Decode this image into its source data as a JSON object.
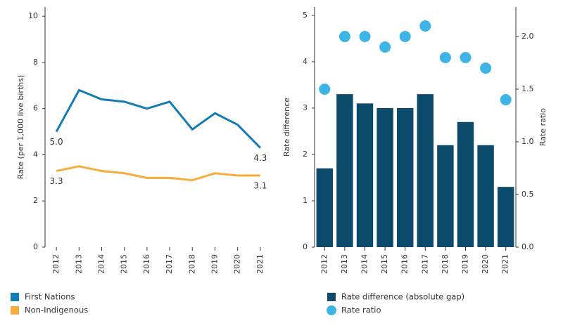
{
  "chart_data": [
    {
      "type": "line",
      "y_label": "Rate (per 1,000 live births)",
      "categories": [
        "2012",
        "2013",
        "2014",
        "2015",
        "2016",
        "2017",
        "2018",
        "2019",
        "2020",
        "2021"
      ],
      "ylim": [
        0,
        10.4
      ],
      "yticks": [
        0,
        2,
        4,
        6,
        8,
        10
      ],
      "series": [
        {
          "name": "First Nations",
          "color": "#137cb5",
          "values": [
            5.0,
            6.8,
            6.4,
            6.3,
            6.0,
            6.3,
            5.1,
            5.8,
            5.3,
            4.3
          ],
          "value_labels": [
            "5.0",
            null,
            null,
            null,
            null,
            null,
            null,
            null,
            null,
            "4.3"
          ]
        },
        {
          "name": "Non-Indigenous",
          "color": "#f7ac3e",
          "values": [
            3.3,
            3.5,
            3.3,
            3.2,
            3.0,
            3.0,
            2.9,
            3.2,
            3.1,
            3.1
          ],
          "value_labels": [
            "3.3",
            null,
            null,
            null,
            null,
            null,
            null,
            null,
            null,
            "3.1"
          ]
        }
      ]
    },
    {
      "type": "bar",
      "y_label": "Rate difference",
      "y2_label": "Rate ratio",
      "categories": [
        "2012",
        "2013",
        "2014",
        "2015",
        "2016",
        "2017",
        "2018",
        "2019",
        "2020",
        "2021"
      ],
      "ylim": [
        0,
        5.18
      ],
      "yticks": [
        0,
        1,
        2,
        3,
        4,
        5
      ],
      "y2lim": [
        0,
        2.28
      ],
      "y2ticks": [
        {
          "value": 0,
          "label": "0.0"
        },
        {
          "value": 0.5,
          "label": "0.5"
        },
        {
          "value": 1,
          "label": "1.0"
        },
        {
          "value": 1.5,
          "label": "1.5"
        },
        {
          "value": 2,
          "label": "2.0"
        }
      ],
      "series": [
        {
          "name": "Rate difference (absolute gap)",
          "color": "#0c4a6c",
          "values": [
            1.7,
            3.3,
            3.1,
            3.0,
            3.0,
            3.3,
            2.2,
            2.7,
            2.2,
            1.3
          ]
        },
        {
          "name": "Rate ratio",
          "color": "#3cb5e6",
          "axis": "y2",
          "values": [
            1.5,
            2.0,
            2.0,
            1.9,
            2.0,
            2.1,
            1.8,
            1.8,
            1.7,
            1.4
          ]
        }
      ]
    }
  ]
}
